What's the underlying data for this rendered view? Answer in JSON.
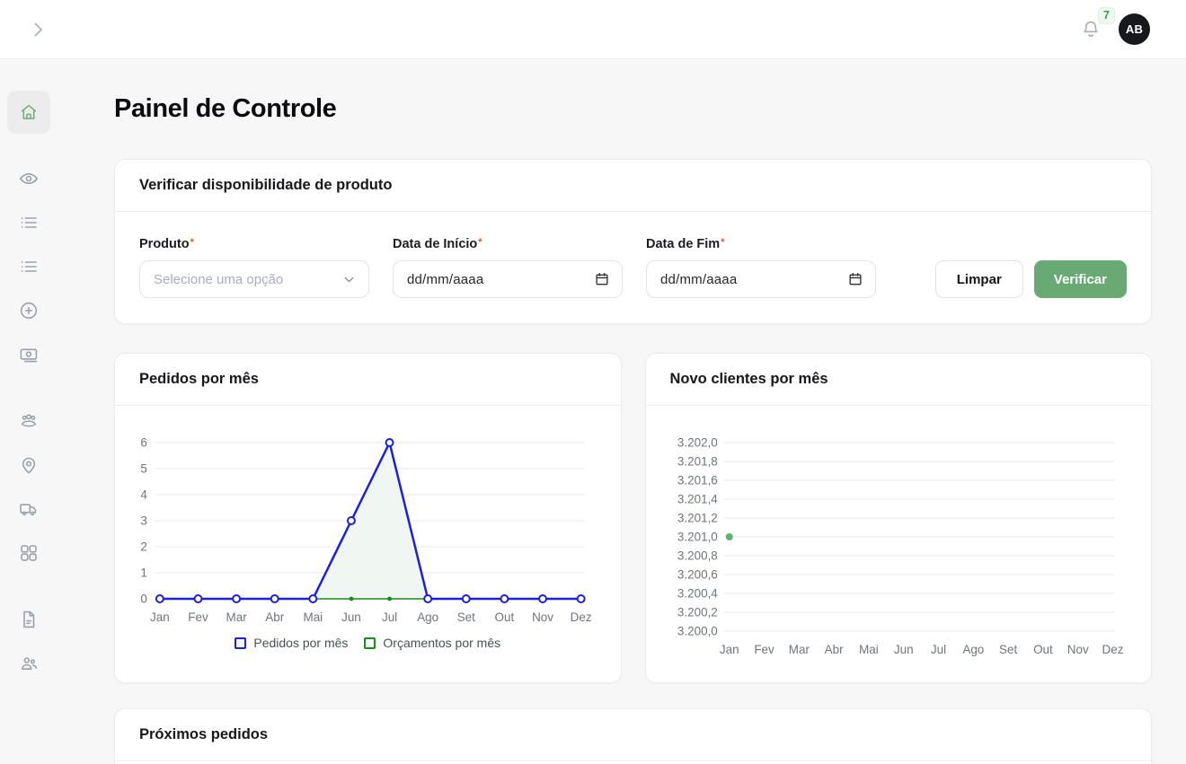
{
  "topbar": {
    "notification_count": "7",
    "avatar_initials": "AB"
  },
  "sidebar": {
    "items": [
      {
        "name": "home",
        "active": true
      },
      {
        "name": "visibility"
      },
      {
        "name": "orders-list"
      },
      {
        "name": "catalog-list"
      },
      {
        "name": "add-new"
      },
      {
        "name": "payments"
      },
      {
        "name": "customers"
      },
      {
        "name": "locations"
      },
      {
        "name": "shipping"
      },
      {
        "name": "modules"
      },
      {
        "name": "documents"
      },
      {
        "name": "users"
      }
    ]
  },
  "page": {
    "title": "Painel de Controle"
  },
  "availability": {
    "title": "Verificar disponibilidade de produto",
    "required_mark": "*",
    "produto_label": "Produto",
    "produto_placeholder": "Selecione uma opção",
    "data_inicio_label": "Data de Início",
    "data_inicio_value": "dd/mm/aaaa",
    "data_fim_label": "Data de Fim",
    "data_fim_value": "dd/mm/aaaa",
    "limpar_label": "Limpar",
    "verificar_label": "Verificar"
  },
  "upcoming": {
    "title": "Próximos pedidos"
  },
  "colors": {
    "accent_green": "#69a974",
    "series_blue": "#1e1ee0",
    "series_green": "#1a8c1a",
    "new_clients_dot": "#5fb36e",
    "badge_green": "#3d9a50"
  },
  "chart_data": [
    {
      "type": "line",
      "title": "Pedidos por mês",
      "categories": [
        "Jan",
        "Fev",
        "Mar",
        "Abr",
        "Mai",
        "Jun",
        "Jul",
        "Ago",
        "Set",
        "Out",
        "Nov",
        "Dez"
      ],
      "series": [
        {
          "name": "Pedidos por mês",
          "color": "#1e1ee0",
          "values": [
            0,
            0,
            0,
            0,
            0,
            3,
            6,
            0,
            0,
            0,
            0,
            0
          ],
          "marker": "open",
          "marker_r": 4,
          "line_width": 2.5,
          "area_fill": "#f0f6f1"
        },
        {
          "name": "Orçamentos por mês",
          "color": "#1a8c1a",
          "values": [
            0,
            0,
            0,
            0,
            0,
            0,
            0,
            0,
            0,
            0,
            0,
            0
          ],
          "marker": "dot",
          "marker_r": 2.4,
          "line_width": 1.5
        }
      ],
      "ylim": [
        0,
        6
      ],
      "yticks": [
        0,
        1,
        2,
        3,
        4,
        5,
        6
      ],
      "ytick_labels": [
        "0",
        "1",
        "2",
        "3",
        "4",
        "5",
        "6"
      ],
      "grid": true,
      "legend_position": "bottom"
    },
    {
      "type": "line",
      "title": "Novo clientes por mês",
      "categories": [
        "Jan",
        "Fev",
        "Mar",
        "Abr",
        "Mai",
        "Jun",
        "Jul",
        "Ago",
        "Set",
        "Out",
        "Nov",
        "Dez"
      ],
      "series": [
        {
          "name": "Novo clientes por mês",
          "color": "#5fb36e",
          "values": [
            3201.0,
            null,
            null,
            null,
            null,
            null,
            null,
            null,
            null,
            null,
            null,
            null
          ],
          "marker": "dot",
          "marker_r": 4
        }
      ],
      "ylim": [
        3200.0,
        3202.0
      ],
      "yticks": [
        3200.0,
        3200.2,
        3200.4,
        3200.6,
        3200.8,
        3201.0,
        3201.2,
        3201.4,
        3201.6,
        3201.8,
        3202.0
      ],
      "ytick_labels": [
        "3.200,0",
        "3.200,2",
        "3.200,4",
        "3.200,6",
        "3.200,8",
        "3.201,0",
        "3.201,2",
        "3.201,4",
        "3.201,6",
        "3.201,8",
        "3.202,0"
      ],
      "grid": true,
      "legend_position": "none"
    }
  ]
}
